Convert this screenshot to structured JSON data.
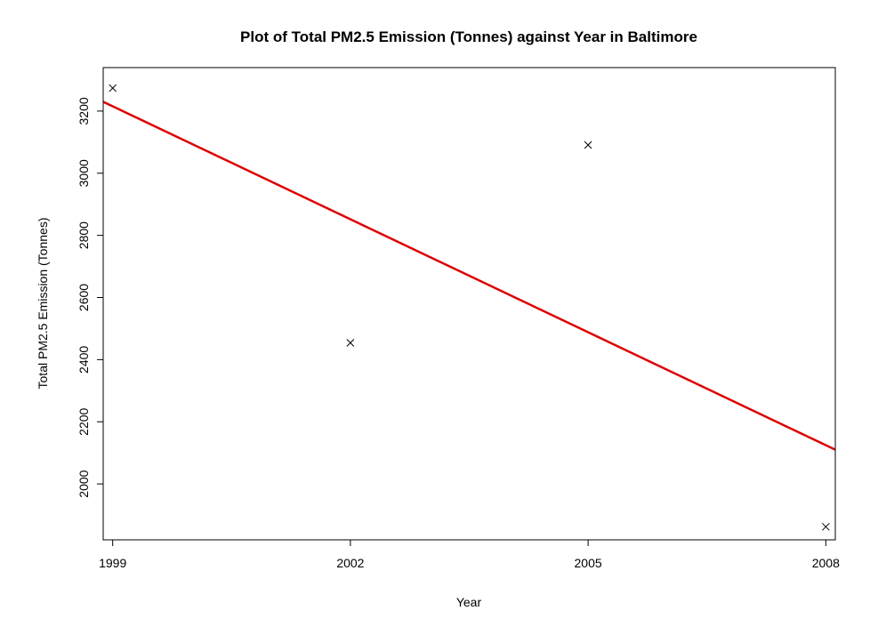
{
  "chart_data": {
    "type": "scatter",
    "title": "Plot of Total PM2.5 Emission (Tonnes) against Year in Baltimore",
    "xlabel": "Year",
    "ylabel": "Total PM2.5 Emission (Tonnes)",
    "xlim": [
      1998.88,
      2008.12
    ],
    "ylim": [
      1820,
      3340
    ],
    "xticks": [
      1999,
      2002,
      2005,
      2008
    ],
    "yticks": [
      2000,
      2200,
      2400,
      2600,
      2800,
      3000,
      3200
    ],
    "marker": "x",
    "marker_color": "#000000",
    "grid": false,
    "points": [
      {
        "x": 1999,
        "y": 3274
      },
      {
        "x": 2002,
        "y": 2454
      },
      {
        "x": 2005,
        "y": 3091
      },
      {
        "x": 2008,
        "y": 1862
      }
    ],
    "trend_line": {
      "color": "#dd0000",
      "intercept_at_1999": 3215.4,
      "slope": -121.2
    }
  }
}
